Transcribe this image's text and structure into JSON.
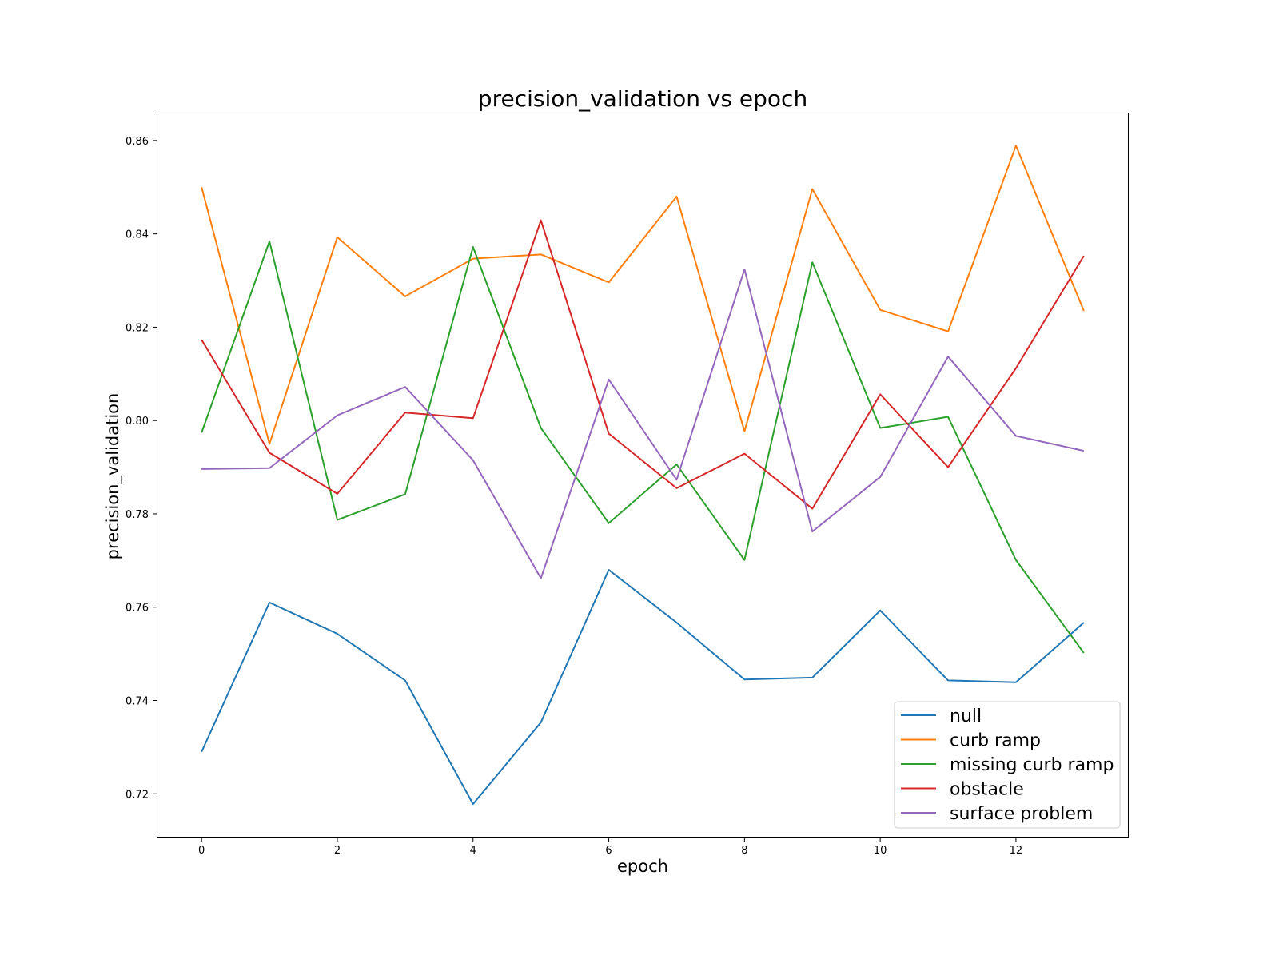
{
  "chart_data": {
    "type": "line",
    "title": "precision_validation vs epoch",
    "xlabel": "epoch",
    "ylabel": "precision_validation",
    "xlim": [
      -0.65,
      13.65
    ],
    "ylim": [
      0.7108,
      0.8658
    ],
    "xticks": [
      0,
      2,
      4,
      6,
      8,
      10,
      12
    ],
    "yticks": [
      0.72,
      0.74,
      0.76,
      0.78,
      0.8,
      0.82,
      0.84,
      0.86
    ],
    "ytick_labels": [
      "0.72",
      "0.74",
      "0.76",
      "0.78",
      "0.80",
      "0.82",
      "0.84",
      "0.86"
    ],
    "grid": false,
    "legend_position": "lower-right",
    "x": [
      0,
      1,
      2,
      3,
      4,
      5,
      6,
      7,
      8,
      9,
      10,
      11,
      12,
      13
    ],
    "series": [
      {
        "name": "null",
        "color": "#1f77b4",
        "values": [
          0.729,
          0.761,
          0.7543,
          0.7443,
          0.7178,
          0.7353,
          0.768,
          0.7567,
          0.7445,
          0.7449,
          0.7593,
          0.7443,
          0.7439,
          0.7567
        ]
      },
      {
        "name": "curb ramp",
        "color": "#ff7f0e",
        "values": [
          0.85,
          0.795,
          0.8393,
          0.8266,
          0.8347,
          0.8356,
          0.8296,
          0.848,
          0.7977,
          0.8496,
          0.8237,
          0.8191,
          0.8589,
          0.8235
        ]
      },
      {
        "name": "missing curb ramp",
        "color": "#2ca02c",
        "values": [
          0.7974,
          0.8384,
          0.7787,
          0.7842,
          0.8372,
          0.7984,
          0.778,
          0.7906,
          0.7701,
          0.8339,
          0.7984,
          0.8008,
          0.7701,
          0.7502
        ]
      },
      {
        "name": "obstacle",
        "color": "#d62728",
        "values": [
          0.8173,
          0.7931,
          0.7843,
          0.8017,
          0.8005,
          0.8429,
          0.7972,
          0.7855,
          0.7929,
          0.7811,
          0.8056,
          0.79,
          0.8112,
          0.8353
        ]
      },
      {
        "name": "surface problem",
        "color": "#9467bd",
        "values": [
          0.7896,
          0.7898,
          0.8011,
          0.8072,
          0.7915,
          0.7662,
          0.8088,
          0.7873,
          0.8324,
          0.7762,
          0.7879,
          0.8137,
          0.7967,
          0.7935
        ]
      }
    ]
  }
}
